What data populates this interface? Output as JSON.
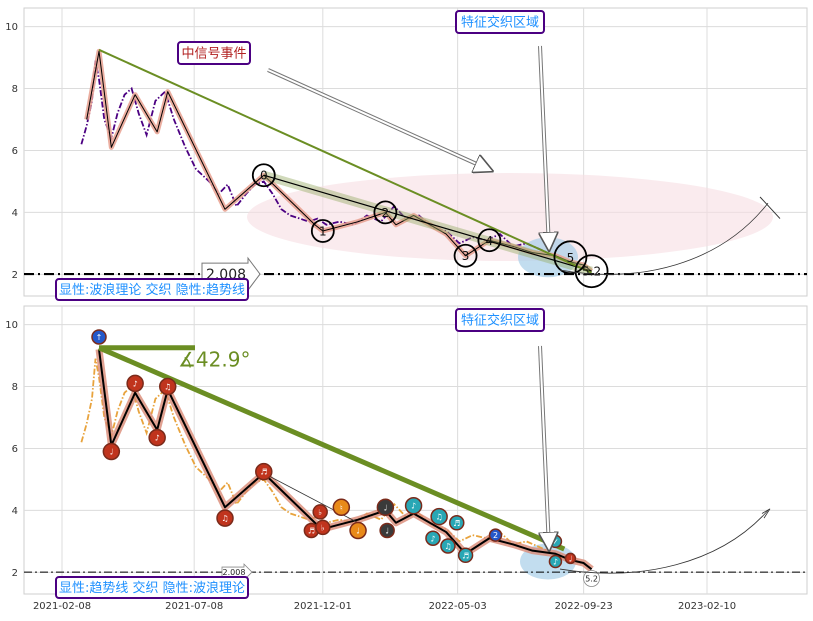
{
  "chart_data": [
    {
      "type": "line",
      "panel": "top",
      "ylim": [
        1.3,
        10.6
      ],
      "yticks": [
        2,
        4,
        6,
        8,
        10
      ],
      "grid": true,
      "series": [
        {
          "color": "#4b0082",
          "style": "dash-dot",
          "x": [
            "2021-03-02",
            "2021-03-08",
            "2021-03-14",
            "2021-03-18",
            "2021-03-22",
            "2021-03-28",
            "2021-04-05",
            "2021-04-12",
            "2021-04-20",
            "2021-04-28",
            "2021-05-06",
            "2021-05-15",
            "2021-05-25",
            "2021-06-05",
            "2021-06-15",
            "2021-06-28",
            "2021-07-10",
            "2021-07-25",
            "2021-08-05",
            "2021-08-15",
            "2021-08-25",
            "2021-09-05",
            "2021-09-15",
            "2021-09-25",
            "2021-10-05",
            "2021-10-15",
            "2021-10-25",
            "2021-11-05",
            "2021-11-15",
            "2021-11-25",
            "2021-12-05",
            "2021-12-20",
            "2022-01-05",
            "2022-01-20",
            "2022-02-05",
            "2022-02-20",
            "2022-03-05",
            "2022-03-20",
            "2022-04-05",
            "2022-04-20",
            "2022-05-05",
            "2022-05-20",
            "2022-06-05",
            "2022-06-20",
            "2022-07-05",
            "2022-07-20",
            "2022-08-05",
            "2022-08-20",
            "2022-09-05",
            "2022-09-20"
          ],
          "y": [
            6.2,
            6.8,
            7.6,
            8.9,
            8.3,
            7.0,
            6.4,
            7.2,
            7.8,
            8.0,
            7.2,
            6.5,
            7.6,
            7.9,
            7.0,
            6.1,
            5.4,
            5.0,
            4.6,
            4.9,
            4.2,
            4.6,
            4.9,
            5.0,
            4.6,
            4.1,
            3.9,
            3.8,
            3.7,
            3.8,
            3.6,
            3.7,
            3.6,
            3.9,
            3.7,
            4.2,
            3.8,
            3.9,
            3.5,
            3.4,
            3.0,
            3.2,
            3.1,
            3.3,
            2.9,
            3.0,
            2.8,
            2.6,
            2.4,
            2.3
          ]
        },
        {
          "color": "#000000",
          "style": "wave",
          "x": [
            "2021-03-08",
            "2021-03-22",
            "2021-04-05",
            "2021-05-02",
            "2021-05-27",
            "2021-06-08",
            "2021-08-12",
            "2021-09-25",
            "2021-11-22",
            "2021-12-01",
            "2022-01-10",
            "2022-02-10",
            "2022-02-22",
            "2022-03-14",
            "2022-04-20",
            "2022-05-12",
            "2022-06-08",
            "2022-07-05",
            "2022-07-27",
            "2022-08-22",
            "2022-09-08",
            "2022-09-23",
            "2022-10-02"
          ],
          "y": [
            7.0,
            9.2,
            6.1,
            7.8,
            6.6,
            7.9,
            4.1,
            5.2,
            3.6,
            3.4,
            3.7,
            4.0,
            3.6,
            3.9,
            3.3,
            2.6,
            3.1,
            2.9,
            2.7,
            2.6,
            2.4,
            2.3,
            2.1
          ]
        }
      ],
      "trend_line": {
        "x": [
          "2021-03-22",
          "2022-10-02"
        ],
        "y": [
          9.25,
          2.05
        ],
        "color": "#6b8e23"
      },
      "support_line": {
        "y": 2.008,
        "label": "2.008"
      },
      "wave_labels": [
        "0",
        "1",
        "2",
        "3",
        "4",
        "5",
        "5.2"
      ],
      "annotations": [
        {
          "text": "中信号事件",
          "color": "#b22222"
        },
        {
          "text": "特征交织区域",
          "color": "#1e90ff"
        },
        {
          "text": "显性:波浪理论 交织 隐性:趋势线",
          "color": "#1e90ff"
        }
      ]
    },
    {
      "type": "line",
      "panel": "bottom",
      "ylim": [
        1.3,
        10.6
      ],
      "yticks": [
        2,
        4,
        6,
        8,
        10
      ],
      "xticks": [
        "2021-02-08",
        "2021-07-08",
        "2021-12-01",
        "2022-05-03",
        "2022-09-23",
        "2023-02-10"
      ],
      "grid": true,
      "series": [
        {
          "color": "#e8a33d",
          "style": "dash-dot",
          "x": [
            "2021-03-02",
            "2021-03-08",
            "2021-03-14",
            "2021-03-18",
            "2021-03-22",
            "2021-03-28",
            "2021-04-05",
            "2021-04-12",
            "2021-04-20",
            "2021-04-28",
            "2021-05-06",
            "2021-05-15",
            "2021-05-25",
            "2021-06-05",
            "2021-06-15",
            "2021-06-28",
            "2021-07-10",
            "2021-07-25",
            "2021-08-05",
            "2021-08-15",
            "2021-08-25",
            "2021-09-05",
            "2021-09-15",
            "2021-09-25",
            "2021-10-05",
            "2021-10-15",
            "2021-10-25",
            "2021-11-05",
            "2021-11-15",
            "2021-11-25",
            "2021-12-05",
            "2021-12-20",
            "2022-01-05",
            "2022-01-20",
            "2022-02-05",
            "2022-02-20",
            "2022-03-05",
            "2022-03-20",
            "2022-04-05",
            "2022-04-20",
            "2022-05-05",
            "2022-05-20",
            "2022-06-05",
            "2022-06-20",
            "2022-07-05",
            "2022-07-20",
            "2022-08-05",
            "2022-08-20",
            "2022-09-05",
            "2022-09-20"
          ],
          "y": [
            6.2,
            6.8,
            7.6,
            8.9,
            8.3,
            7.0,
            6.4,
            7.2,
            7.8,
            8.0,
            7.2,
            6.5,
            7.6,
            7.9,
            7.0,
            6.1,
            5.4,
            5.0,
            4.6,
            4.9,
            4.2,
            4.6,
            4.9,
            5.0,
            4.6,
            4.1,
            3.9,
            3.8,
            3.7,
            3.8,
            3.6,
            3.7,
            3.6,
            3.9,
            3.7,
            4.2,
            3.8,
            3.9,
            3.5,
            3.4,
            3.0,
            3.2,
            3.1,
            3.3,
            2.9,
            3.0,
            2.8,
            2.6,
            2.4,
            2.3
          ]
        },
        {
          "color": "#000000",
          "style": "wave",
          "x": [
            "2021-03-22",
            "2021-04-05",
            "2021-05-02",
            "2021-05-27",
            "2021-06-08",
            "2021-08-12",
            "2021-09-25",
            "2021-11-22",
            "2021-12-01",
            "2022-01-10",
            "2022-02-10",
            "2022-02-22",
            "2022-03-14",
            "2022-04-20",
            "2022-05-12",
            "2022-06-08",
            "2022-07-05",
            "2022-07-27",
            "2022-08-22",
            "2022-09-08",
            "2022-09-23",
            "2022-10-02"
          ],
          "y": [
            9.2,
            6.1,
            7.8,
            6.6,
            7.9,
            4.1,
            5.2,
            3.6,
            3.4,
            3.7,
            4.0,
            3.6,
            3.9,
            3.3,
            2.6,
            3.1,
            2.9,
            2.7,
            2.6,
            2.4,
            2.3,
            2.1
          ]
        }
      ],
      "trend_line": {
        "x": [
          "2021-03-22",
          "2022-09-01"
        ],
        "y": [
          9.25,
          2.75
        ],
        "color": "#6b8e23"
      },
      "support_line": {
        "y": 2.008,
        "label": "2.008"
      },
      "angle_label": "∡42.9°",
      "end_label": "5.2",
      "annotations": [
        {
          "text": "特征交织区域",
          "color": "#1e90ff"
        },
        {
          "text": "显性:趋势线 交织 隐性:波浪理论",
          "color": "#1e90ff"
        }
      ]
    }
  ],
  "labels": {
    "top_signal": "中信号事件",
    "top_zone": "特征交织区域",
    "top_legend": "显性:波浪理论 交织 隐性:趋势线",
    "bottom_zone": "特征交织区域",
    "bottom_legend": "显性:趋势线 交织 隐性:波浪理论",
    "support_value": "2.008",
    "angle": "∡42.9°",
    "end_value": "5.2"
  }
}
